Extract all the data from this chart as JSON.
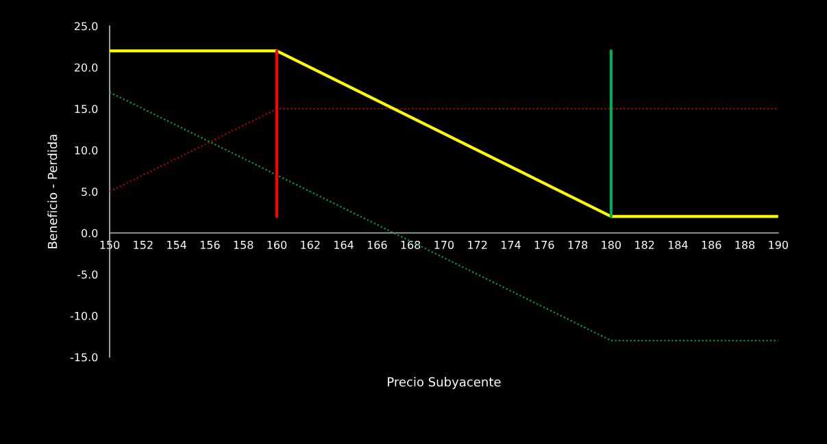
{
  "chart_data": {
    "type": "line",
    "xlabel": "Precio Subyacente",
    "ylabel": "Beneficio - Perdida",
    "series": [
      {
        "color": "#c00000",
        "line_style": "dotted",
        "x": [
          150,
          160,
          190
        ],
        "values": [
          5,
          15,
          15
        ]
      },
      {
        "color": "#00b050",
        "line_style": "dotted",
        "x": [
          150,
          180,
          190
        ],
        "values": [
          17,
          -13,
          -13
        ]
      },
      {
        "color": "#ffff00",
        "line_style": "solid",
        "x": [
          150,
          160,
          180,
          190
        ],
        "values": [
          22,
          22,
          2,
          2
        ]
      },
      {
        "color": "#ff0000",
        "line_style": "solid",
        "x": [
          160,
          160
        ],
        "values": [
          2,
          22
        ]
      },
      {
        "color": "#00b050",
        "line_style": "solid",
        "x": [
          180,
          180
        ],
        "values": [
          2,
          22
        ]
      }
    ],
    "xlim": [
      150,
      190
    ],
    "xticks": [
      150,
      152,
      154,
      156,
      158,
      160,
      162,
      164,
      166,
      168,
      170,
      172,
      174,
      176,
      178,
      180,
      182,
      184,
      186,
      188,
      190
    ],
    "ylim": [
      -15,
      25
    ],
    "yticks": [
      {
        "value": -15,
        "label": "-15.0"
      },
      {
        "value": -10,
        "label": "-10.0"
      },
      {
        "value": -5,
        "label": "-5.0"
      },
      {
        "value": 0,
        "label": "0.0"
      },
      {
        "value": 5,
        "label": "5.0"
      },
      {
        "value": 10,
        "label": "10.0"
      },
      {
        "value": 15,
        "label": "15.0"
      },
      {
        "value": 20,
        "label": "20.0"
      },
      {
        "value": 25,
        "label": "25.0"
      }
    ],
    "grid": false,
    "legend": false
  }
}
